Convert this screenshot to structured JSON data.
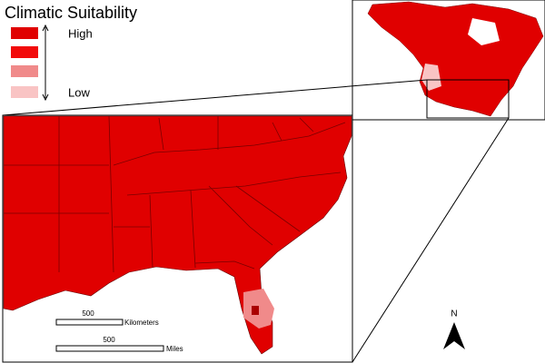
{
  "legend": {
    "title": "Climatic Suitability",
    "high_label": "High",
    "low_label": "Low",
    "swatches": [
      {
        "color": "#e00000"
      },
      {
        "color": "#f20a0a"
      },
      {
        "color": "#f08a8a"
      },
      {
        "color": "#f9c4c4"
      }
    ]
  },
  "scale_bars": [
    {
      "value": "500",
      "unit": "Kilometers"
    },
    {
      "value": "500",
      "unit": "Miles"
    }
  ],
  "north_arrow": {
    "label": "N"
  }
}
